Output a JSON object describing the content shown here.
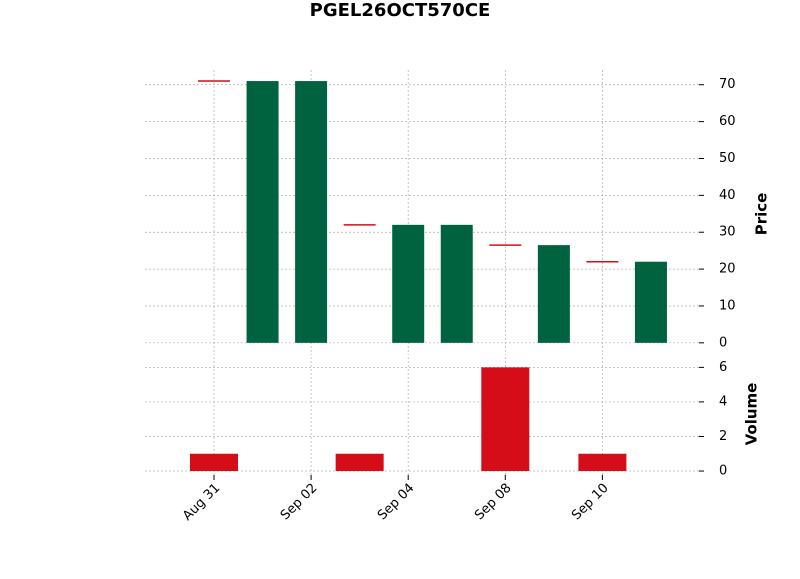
{
  "chart_data": {
    "type": "candlestick",
    "title": "PGEL26OCT570CE",
    "categories": [
      "Aug 31",
      null,
      "Sep 02",
      null,
      "Sep 04",
      null,
      "Sep 08",
      null,
      "Sep 10",
      null
    ],
    "open": [
      71,
      0,
      0,
      32,
      0,
      0,
      26.5,
      0,
      22,
      0
    ],
    "close": [
      71,
      71,
      71,
      32,
      32,
      32,
      26.5,
      26.5,
      22,
      22
    ],
    "volume": [
      1,
      0,
      0,
      1,
      0,
      0,
      6,
      0,
      1,
      0
    ],
    "up_color": "#006340",
    "down_color": "#d50d18",
    "volume_color": "#d50d18",
    "ylabel": "Price",
    "y2label": "Volume",
    "ylim": [
      -3.3,
      74
    ],
    "yticks": [
      0,
      10,
      20,
      30,
      40,
      50,
      60,
      70
    ],
    "y2lim": [
      -0.23,
      6.6
    ],
    "y2ticks": [
      0,
      2,
      4,
      6
    ],
    "grid": true
  }
}
